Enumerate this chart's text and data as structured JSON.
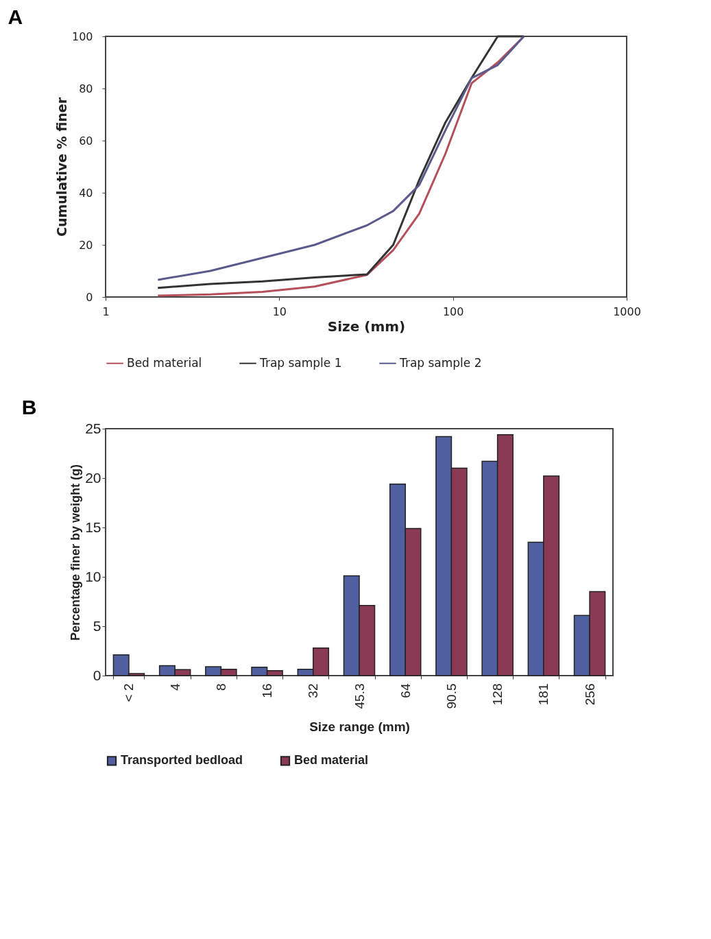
{
  "chart_data": [
    {
      "type": "line",
      "title": "A",
      "xlabel": "Size (mm)",
      "ylabel": "Cumulative % finer",
      "log": "x",
      "grid": false,
      "legend": "bottom",
      "xlim": [
        1,
        1000
      ],
      "xticks": [
        1,
        10,
        100,
        1000
      ],
      "ylim": [
        0,
        100
      ],
      "yticks": [
        0,
        20,
        40,
        60,
        80,
        100
      ],
      "x": [
        2,
        4,
        8,
        16,
        32,
        45.3,
        64,
        90.5,
        128,
        181,
        256
      ],
      "series": [
        {
          "name": "Bed material",
          "color": "#b5505a",
          "values": [
            0.5,
            1,
            2,
            4,
            8.5,
            18,
            32,
            55,
            82,
            90,
            100
          ]
        },
        {
          "name": "Trap sample 1",
          "color": "#333333",
          "values": [
            3.5,
            5,
            6,
            7.5,
            8.7,
            20,
            45,
            67,
            84,
            100,
            100
          ]
        },
        {
          "name": "Trap sample 2",
          "color": "#5a5a8c",
          "values": [
            6.6,
            10,
            15,
            20,
            27.5,
            33,
            43,
            64,
            84,
            89,
            100
          ]
        }
      ]
    },
    {
      "type": "bar",
      "title": "B",
      "xlabel": "Size range (mm)",
      "ylabel": "Percentage finer by weight (g)",
      "grid": false,
      "legend": "bottom",
      "ylim": [
        0,
        25
      ],
      "yticks": [
        0,
        5,
        10,
        15,
        20,
        25
      ],
      "categories": [
        "< 2",
        "4",
        "8",
        "16",
        "32",
        "45.3",
        "64",
        "90.5",
        "128",
        "181",
        "256"
      ],
      "series": [
        {
          "name": "Transported bedload",
          "color": "#4f5f9f",
          "values": [
            2.1,
            1.0,
            0.9,
            0.85,
            0.65,
            10.1,
            19.4,
            24.2,
            21.7,
            13.5,
            6.1
          ]
        },
        {
          "name": "Bed material",
          "color": "#8b3a55",
          "values": [
            0.2,
            0.6,
            0.65,
            0.5,
            2.8,
            7.1,
            14.9,
            21.0,
            24.4,
            20.2,
            8.5
          ]
        }
      ]
    }
  ]
}
